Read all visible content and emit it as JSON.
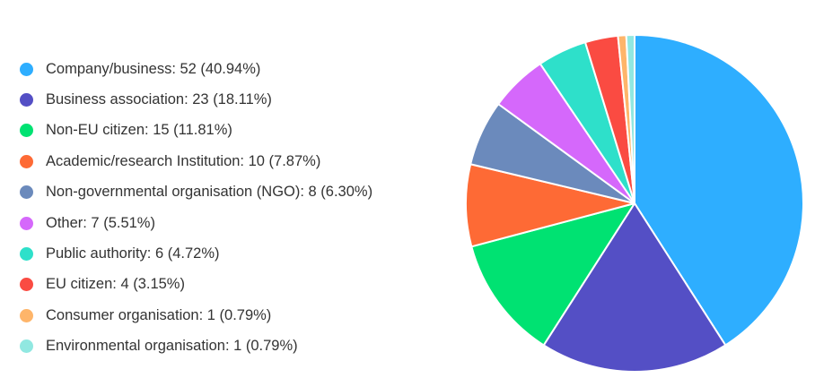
{
  "chart_data": {
    "type": "pie",
    "title": "",
    "legend_position": "left",
    "slices": [
      {
        "label": "Company/business: 52 (40.94%)",
        "category": "Company/business",
        "value": 52,
        "percent": 40.94,
        "color": "#2EAEFF"
      },
      {
        "label": "Business association: 23 (18.11%)",
        "category": "Business association",
        "value": 23,
        "percent": 18.11,
        "color": "#544FC5"
      },
      {
        "label": "Non-EU citizen: 15 (11.81%)",
        "category": "Non-EU citizen",
        "value": 15,
        "percent": 11.81,
        "color": "#00E272"
      },
      {
        "label": "Academic/research Institution: 10 (7.87%)",
        "category": "Academic/research Institution",
        "value": 10,
        "percent": 7.87,
        "color": "#FE6A35"
      },
      {
        "label": "Non-governmental organisation (NGO): 8 (6.30%)",
        "category": "Non-governmental organisation (NGO)",
        "value": 8,
        "percent": 6.3,
        "color": "#6B8ABC"
      },
      {
        "label": "Other: 7 (5.51%)",
        "category": "Other",
        "value": 7,
        "percent": 5.51,
        "color": "#D568FB"
      },
      {
        "label": "Public authority: 6 (4.72%)",
        "category": "Public authority",
        "value": 6,
        "percent": 4.72,
        "color": "#2EE0CA"
      },
      {
        "label": "EU citizen: 4 (3.15%)",
        "category": "EU citizen",
        "value": 4,
        "percent": 3.15,
        "color": "#FA4B42"
      },
      {
        "label": "Consumer organisation: 1 (0.79%)",
        "category": "Consumer organisation",
        "value": 1,
        "percent": 0.79,
        "color": "#FEB56A"
      },
      {
        "label": "Environmental organisation: 1 (0.79%)",
        "category": "Environmental organisation",
        "value": 1,
        "percent": 0.79,
        "color": "#91E8E1"
      }
    ]
  }
}
